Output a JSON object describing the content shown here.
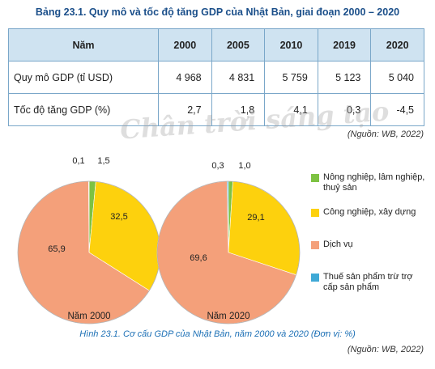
{
  "table": {
    "title": "Bảng 23.1. Quy mô và tốc độ tăng GDP của Nhật Bản, giai đoạn 2000 – 2020",
    "header": [
      "Năm",
      "2000",
      "2005",
      "2010",
      "2019",
      "2020"
    ],
    "rows": [
      [
        "Quy mô GDP (tỉ USD)",
        "4 968",
        "4 831",
        "5 759",
        "5 123",
        "5 040"
      ],
      [
        "Tốc độ tăng GDP (%)",
        "2,7",
        "1,8",
        "4,1",
        "0,3",
        "-4,5"
      ]
    ],
    "source": "(Nguồn: WB, 2022)"
  },
  "watermark": "Chân trời sáng tạo",
  "chart_data": [
    {
      "type": "pie",
      "title": "Năm 2000",
      "categories": [
        "Nông nghiệp, lâm nghiệp, thuỷ sản",
        "Công nghiệp, xây dựng",
        "Dịch vụ",
        "Thuế sản phẩm trừ trợ cấp sản phẩm"
      ],
      "values": [
        1.5,
        32.5,
        65.9,
        0.1
      ],
      "labels": [
        "1,5",
        "32,5",
        "65,9",
        "0,1"
      ]
    },
    {
      "type": "pie",
      "title": "Năm 2020",
      "categories": [
        "Nông nghiệp, lâm nghiệp, thuỷ sản",
        "Công nghiệp, xây dựng",
        "Dịch vụ",
        "Thuế sản phẩm trừ trợ cấp sản phẩm"
      ],
      "values": [
        1.0,
        29.1,
        69.6,
        0.3
      ],
      "labels": [
        "1,0",
        "29,1",
        "69,6",
        "0,3"
      ]
    }
  ],
  "colors": [
    "#7dc242",
    "#fdd10d",
    "#f4a07a",
    "#3fa9d6"
  ],
  "legend": [
    "Nông nghiệp, lâm nghiệp, thuỷ sản",
    "Công nghiệp, xây dựng",
    "Dịch vụ",
    "Thuế sản phẩm trừ trợ cấp sản phẩm"
  ],
  "caption": "Hình 23.1. Cơ cấu GDP của Nhật Bản, năm 2000 và 2020 (Đơn vị: %)",
  "chart_source": "(Nguồn: WB, 2022)"
}
